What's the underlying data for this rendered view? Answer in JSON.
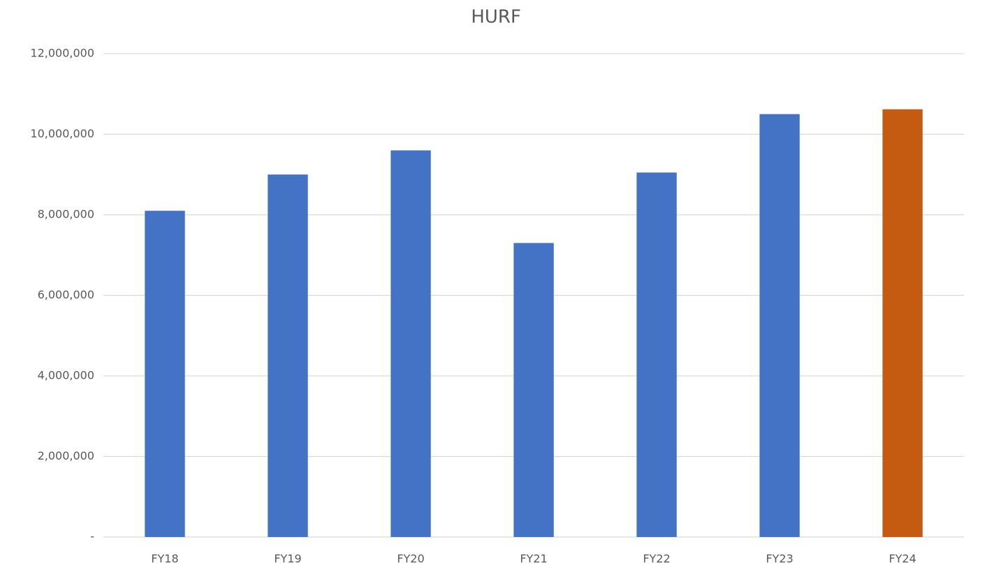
{
  "chart_data": {
    "type": "bar",
    "title": "HURF",
    "categories": [
      "FY18",
      "FY19",
      "FY20",
      "FY21",
      "FY22",
      "FY23",
      "FY24"
    ],
    "values": [
      8100000,
      9000000,
      9600000,
      7300000,
      9050000,
      10500000,
      10620000
    ],
    "colors": [
      "#4472c4",
      "#4472c4",
      "#4472c4",
      "#4472c4",
      "#4472c4",
      "#4472c4",
      "#c55a11"
    ],
    "ylim": [
      0,
      12000000
    ],
    "yticks": [
      {
        "value": 0,
        "label": "-"
      },
      {
        "value": 2000000,
        "label": "2,000,000"
      },
      {
        "value": 4000000,
        "label": "4,000,000"
      },
      {
        "value": 6000000,
        "label": "6,000,000"
      },
      {
        "value": 8000000,
        "label": "8,000,000"
      },
      {
        "value": 10000000,
        "label": "10,000,000"
      },
      {
        "value": 12000000,
        "label": "12,000,000"
      }
    ],
    "grid": true
  }
}
